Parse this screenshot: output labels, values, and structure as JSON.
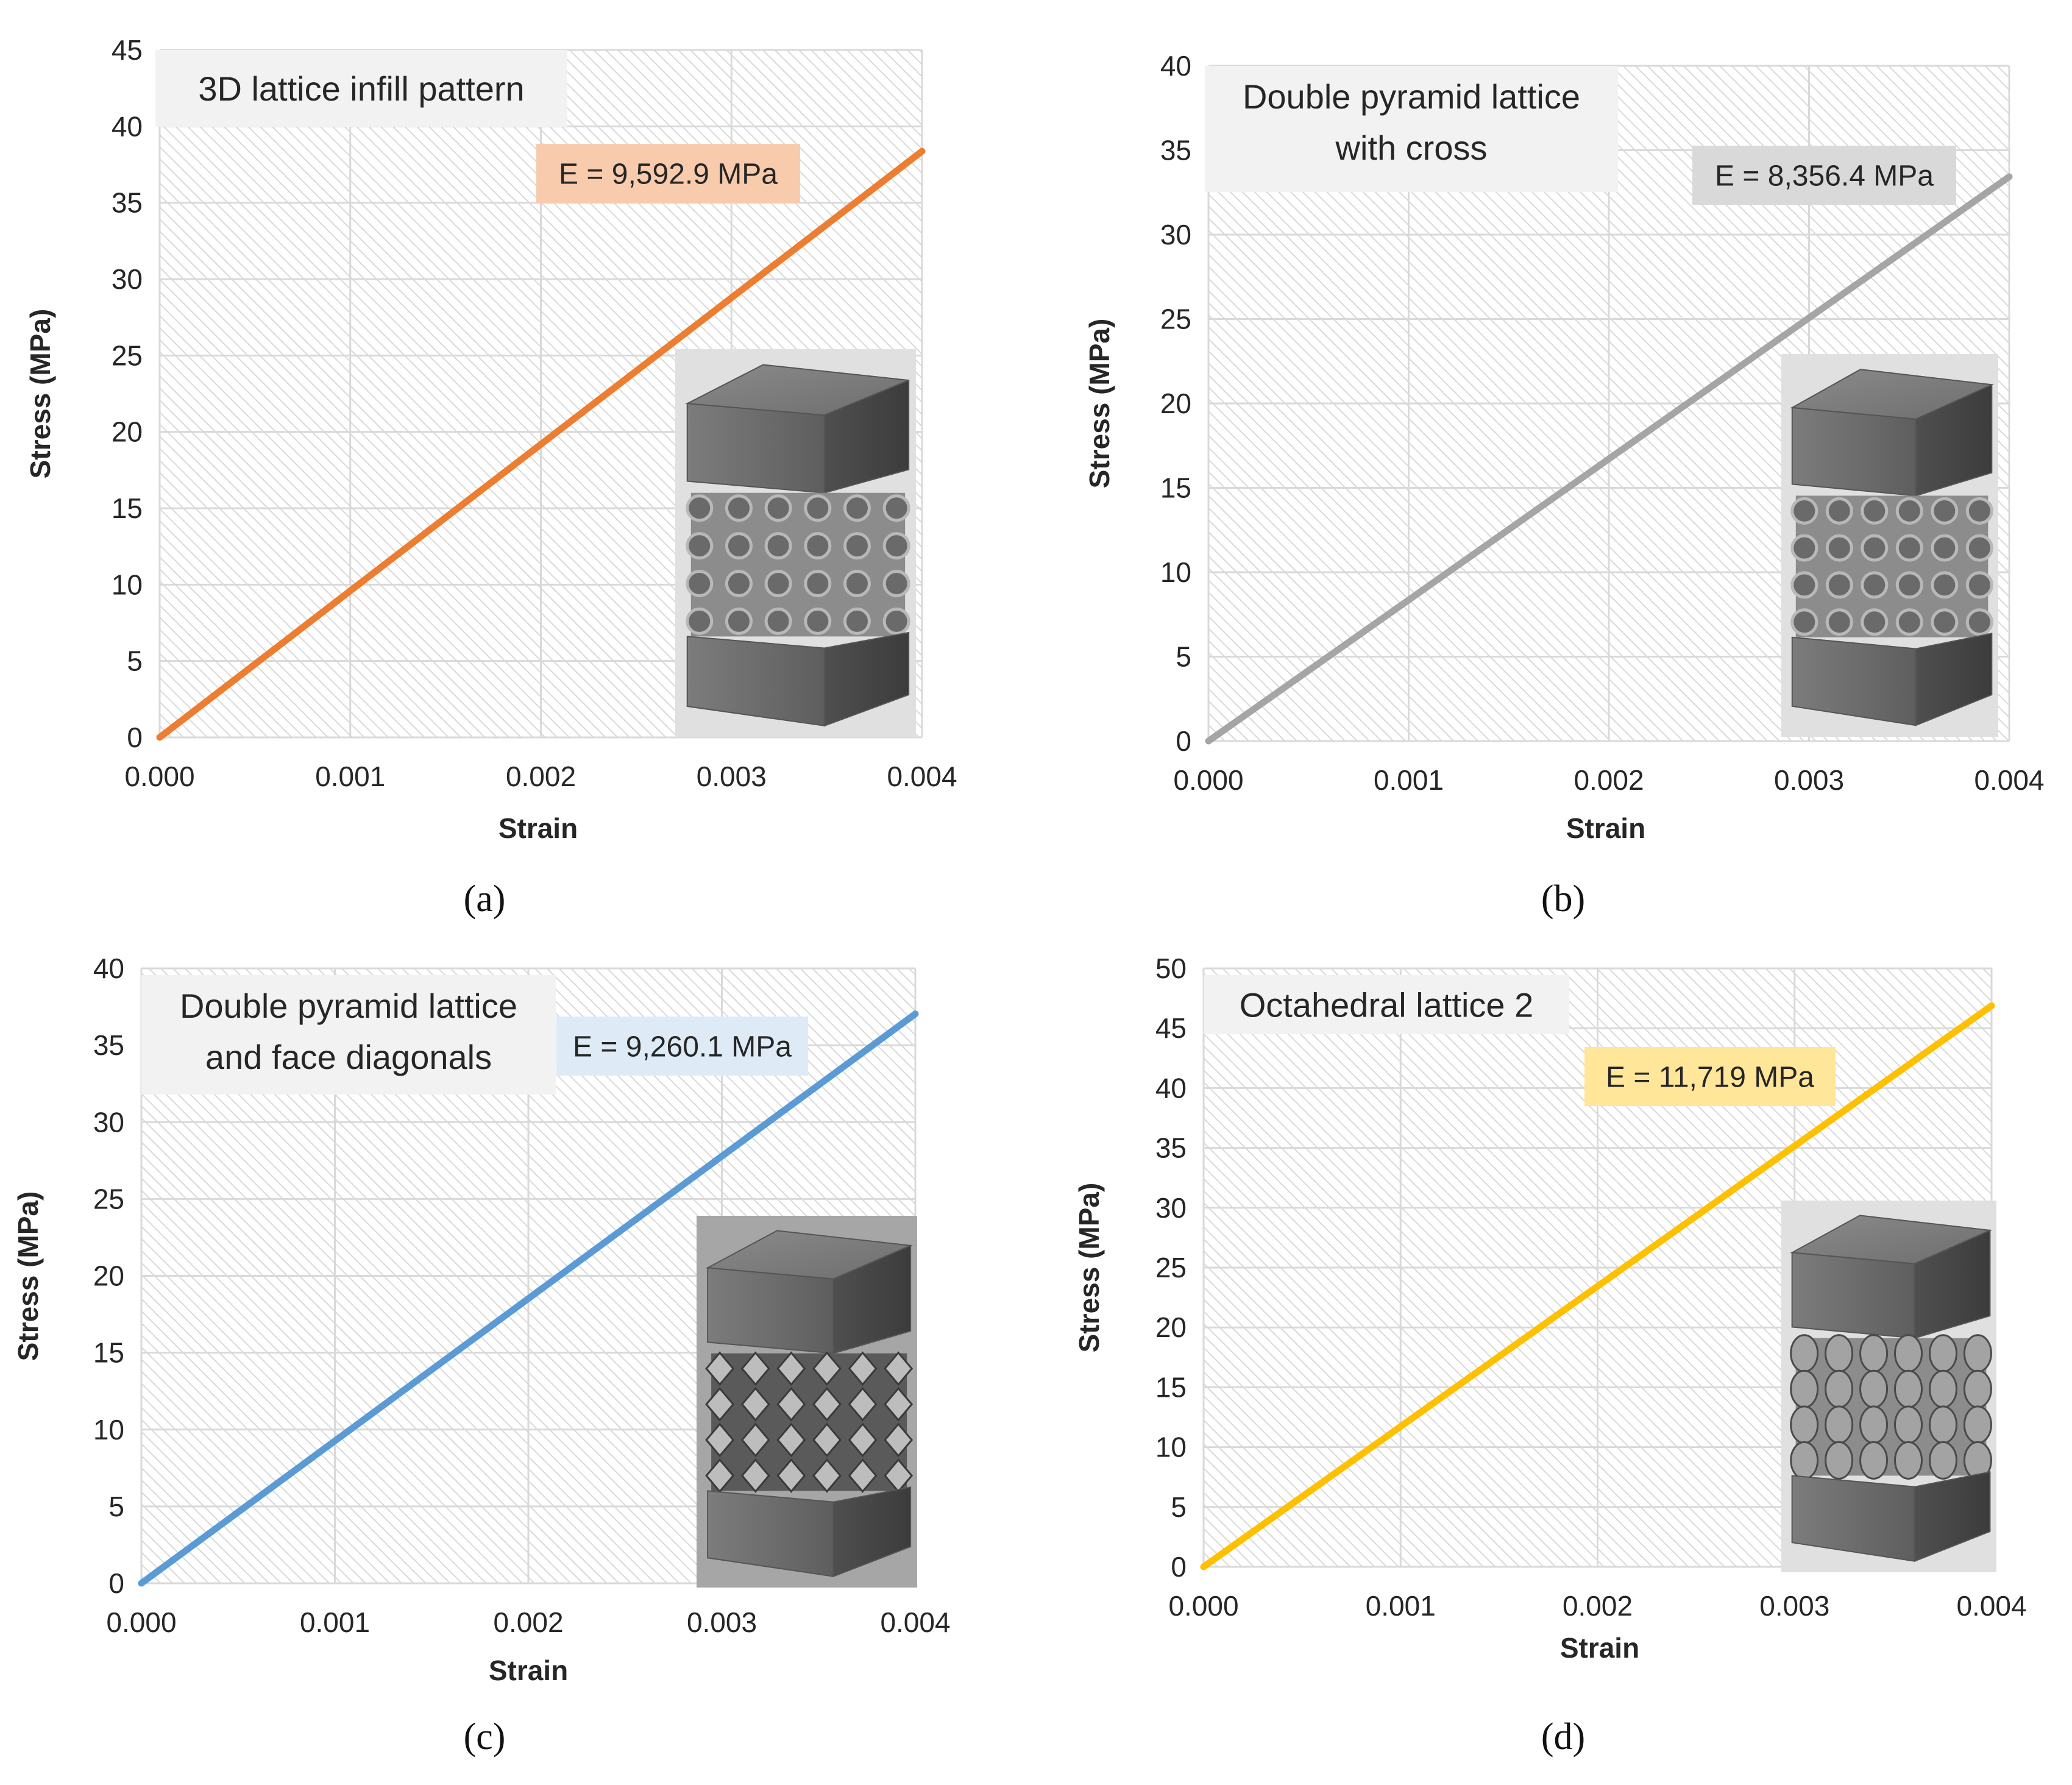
{
  "chart_data": [
    {
      "type": "line",
      "panel": "(a)",
      "title": "3D lattice infill pattern",
      "annotation": "E = 9,592.9 MPa",
      "xlabel": "Strain",
      "ylabel": "Stress (MPa)",
      "xlim": [
        0,
        0.004
      ],
      "ylim": [
        0,
        45
      ],
      "xticks": [
        "0.000",
        "0.001",
        "0.002",
        "0.003",
        "0.004"
      ],
      "yticks": [
        "0",
        "5",
        "10",
        "15",
        "20",
        "25",
        "30",
        "35",
        "40",
        "45"
      ],
      "series": [
        {
          "name": "3D lattice infill pattern",
          "x": [
            0,
            0.004
          ],
          "y": [
            0,
            38.37
          ]
        }
      ],
      "colors": {
        "line": "#ED7D31",
        "label_bg": "#F8CBAD",
        "title_bg": "#F2F2F2"
      }
    },
    {
      "type": "line",
      "panel": "(b)",
      "title": "Double pyramid lattice\nwith cross",
      "annotation": "E = 8,356.4 MPa",
      "xlabel": "Strain",
      "ylabel": "Stress (MPa)",
      "xlim": [
        0,
        0.004
      ],
      "ylim": [
        0,
        40
      ],
      "xticks": [
        "0.000",
        "0.001",
        "0.002",
        "0.003",
        "0.004"
      ],
      "yticks": [
        "0",
        "5",
        "10",
        "15",
        "20",
        "25",
        "30",
        "35",
        "40"
      ],
      "series": [
        {
          "name": "Double pyramid lattice with cross",
          "x": [
            0,
            0.004
          ],
          "y": [
            0,
            33.43
          ]
        }
      ],
      "colors": {
        "line": "#A5A5A5",
        "label_bg": "#D9D9D9",
        "title_bg": "#F2F2F2"
      }
    },
    {
      "type": "line",
      "panel": "(c)",
      "title": "Double pyramid lattice\nand face diagonals",
      "annotation": "E = 9,260.1 MPa",
      "xlabel": "Strain",
      "ylabel": "Stress (MPa)",
      "xlim": [
        0,
        0.004
      ],
      "ylim": [
        0,
        40
      ],
      "xticks": [
        "0.000",
        "0.001",
        "0.002",
        "0.003",
        "0.004"
      ],
      "yticks": [
        "0",
        "5",
        "10",
        "15",
        "20",
        "25",
        "30",
        "35",
        "40"
      ],
      "series": [
        {
          "name": "Double pyramid lattice and face diagonals",
          "x": [
            0,
            0.004
          ],
          "y": [
            0,
            37.04
          ]
        }
      ],
      "colors": {
        "line": "#5B9BD5",
        "label_bg": "#DEEBF7",
        "title_bg": "#F2F2F2"
      }
    },
    {
      "type": "line",
      "panel": "(d)",
      "title": "Octahedral lattice 2",
      "annotation": "E = 11,719 MPa",
      "xlabel": "Strain",
      "ylabel": "Stress (MPa)",
      "xlim": [
        0,
        0.004
      ],
      "ylim": [
        0,
        50
      ],
      "xticks": [
        "0.000",
        "0.001",
        "0.002",
        "0.003",
        "0.004"
      ],
      "yticks": [
        "0",
        "5",
        "10",
        "15",
        "20",
        "25",
        "30",
        "35",
        "40",
        "45",
        "50"
      ],
      "series": [
        {
          "name": "Octahedral lattice 2",
          "x": [
            0,
            0.004
          ],
          "y": [
            0,
            46.88
          ]
        }
      ],
      "colors": {
        "line": "#FFC000",
        "label_bg": "#FFE699",
        "title_bg": "#F2F2F2"
      }
    }
  ],
  "captions": [
    "(a)",
    "(b)",
    "(c)",
    "(d)"
  ],
  "icons": {
    "specimen": "lattice-specimen-render"
  },
  "colors": {
    "plot_bg": "#FFFFFF",
    "hatch": "#D9D9D9",
    "grid": "#D9D9D9",
    "axis_text": "#262626",
    "render_bg": "#E0E0E0",
    "render_bg_dark": "#A6A6A6"
  }
}
